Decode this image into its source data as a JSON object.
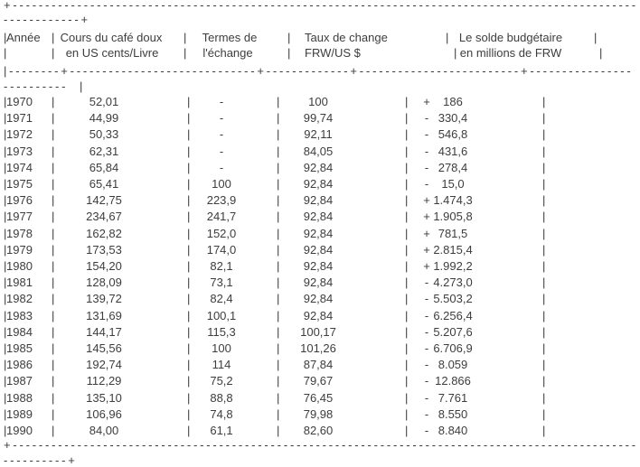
{
  "document": {
    "description": "Tableau texte ASCII: indicateurs économiques 1970-1990"
  },
  "table": {
    "columns": [
      {
        "id": "annee",
        "line1": "Année",
        "line2": ""
      },
      {
        "id": "cours",
        "line1": "Cours du café doux",
        "line2": "en US cents/Livre"
      },
      {
        "id": "termes",
        "line1": "Termes de",
        "line2": "l'échange"
      },
      {
        "id": "taux",
        "line1": "Taux de change",
        "line2": "FRW/US $"
      },
      {
        "id": "solde",
        "line1": "Le solde budgétaire",
        "line2": "en millions de FRW"
      }
    ],
    "rows": [
      {
        "annee": "1970",
        "cours": "52,01",
        "termes": "-",
        "taux": "100",
        "solde_sign": "+",
        "solde": "186"
      },
      {
        "annee": "1971",
        "cours": "44,99",
        "termes": "-",
        "taux": "99,74",
        "solde_sign": "-",
        "solde": "330,4"
      },
      {
        "annee": "1972",
        "cours": "50,33",
        "termes": "-",
        "taux": "92,11",
        "solde_sign": "-",
        "solde": "546,8"
      },
      {
        "annee": "1973",
        "cours": "62,31",
        "termes": "-",
        "taux": "84,05",
        "solde_sign": "-",
        "solde": "431,6"
      },
      {
        "annee": "1974",
        "cours": "65,84",
        "termes": "-",
        "taux": "92,84",
        "solde_sign": "-",
        "solde": "278,4"
      },
      {
        "annee": "1975",
        "cours": "65,41",
        "termes": "100",
        "taux": "92,84",
        "solde_sign": "-",
        "solde": "15,0"
      },
      {
        "annee": "1976",
        "cours": "142,75",
        "termes": "223,9",
        "taux": "92,84",
        "solde_sign": "+",
        "solde": "1.474,3"
      },
      {
        "annee": "1977",
        "cours": "234,67",
        "termes": "241,7",
        "taux": "92,84",
        "solde_sign": "+",
        "solde": "1.905,8"
      },
      {
        "annee": "1978",
        "cours": "162,82",
        "termes": "152,0",
        "taux": "92,84",
        "solde_sign": "+",
        "solde": "781,5"
      },
      {
        "annee": "1979",
        "cours": "173,53",
        "termes": "174,0",
        "taux": "92,84",
        "solde_sign": "+",
        "solde": "2.815,4"
      },
      {
        "annee": "1980",
        "cours": "154,20",
        "termes": "82,1",
        "taux": "92,84",
        "solde_sign": "+",
        "solde": "1.992,2"
      },
      {
        "annee": "1981",
        "cours": "128,09",
        "termes": "73,1",
        "taux": "92,84",
        "solde_sign": "-",
        "solde": "4.273,0"
      },
      {
        "annee": "1982",
        "cours": "139,72",
        "termes": "82,4",
        "taux": "92,84",
        "solde_sign": "-",
        "solde": "5.503,2"
      },
      {
        "annee": "1983",
        "cours": "131,69",
        "termes": "100,1",
        "taux": "92,84",
        "solde_sign": "-",
        "solde": "6.256,4"
      },
      {
        "annee": "1984",
        "cours": "144,17",
        "termes": "115,3",
        "taux": "100,17",
        "solde_sign": "-",
        "solde": "5.207,6"
      },
      {
        "annee": "1985",
        "cours": "145,56",
        "termes": "100",
        "taux": "101,26",
        "solde_sign": "-",
        "solde": "6.706,9"
      },
      {
        "annee": "1986",
        "cours": "192,74",
        "termes": "114",
        "taux": "87,84",
        "solde_sign": "-",
        "solde": "8.059"
      },
      {
        "annee": "1987",
        "cours": "112,29",
        "termes": "75,2",
        "taux": "79,67",
        "solde_sign": "-",
        "solde": "12.866"
      },
      {
        "annee": "1988",
        "cours": "135,10",
        "termes": "88,8",
        "taux": "76,45",
        "solde_sign": "-",
        "solde": "7.761"
      },
      {
        "annee": "1989",
        "cours": "106,96",
        "termes": "74,8",
        "taux": "79,98",
        "solde_sign": "-",
        "solde": "8.550"
      },
      {
        "annee": "1990",
        "cours": "84,00",
        "termes": "61,1",
        "taux": "82,60",
        "solde_sign": "-",
        "solde": "8.840"
      }
    ]
  },
  "borders": {
    "pipe": "|",
    "plus": "+",
    "dash": "-",
    "top_dashes": 97,
    "top_wrap_dashes": 12,
    "separator_segments": [
      8,
      29,
      13,
      25,
      16
    ],
    "separator_wrap_dashes": 10,
    "bottom_dashes": 97,
    "bottom_wrap_dashes": 10
  },
  "colors": {
    "text": "#3d3d3d",
    "background": "#ffffff"
  }
}
